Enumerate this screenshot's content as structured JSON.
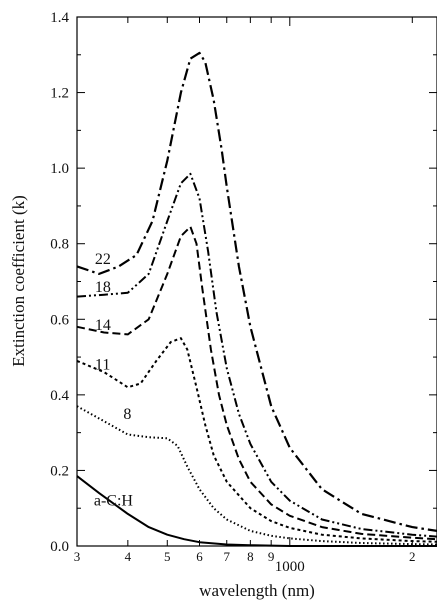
{
  "chart_data": {
    "type": "line",
    "xlabel": "wavelength (nm)",
    "ylabel": "Extinction coefficient (k)",
    "x_scale": "log",
    "xlim": [
      300,
      2300
    ],
    "ylim": [
      0,
      1.4
    ],
    "grid": false,
    "y_ticks": [
      {
        "value": 0.0,
        "label": "0.0"
      },
      {
        "value": 0.2,
        "label": "0.2"
      },
      {
        "value": 0.4,
        "label": "0.4"
      },
      {
        "value": 0.6,
        "label": "0.6"
      },
      {
        "value": 0.8,
        "label": "0.8"
      },
      {
        "value": 1.0,
        "label": "1.0"
      },
      {
        "value": 1.2,
        "label": "1.2"
      },
      {
        "value": 1.4,
        "label": "1.4"
      }
    ],
    "x_ticks": [
      {
        "value": 300,
        "label": "3"
      },
      {
        "value": 400,
        "label": "4"
      },
      {
        "value": 500,
        "label": "5"
      },
      {
        "value": 600,
        "label": "6"
      },
      {
        "value": 700,
        "label": "7"
      },
      {
        "value": 800,
        "label": "8"
      },
      {
        "value": 900,
        "label": "9"
      },
      {
        "value": 1000,
        "label": "1000"
      },
      {
        "value": 2000,
        "label": "2"
      }
    ],
    "series": [
      {
        "name": "a-C:H",
        "dash": "solid",
        "label_x": 330,
        "label_y": 0.12,
        "x": [
          300,
          340,
          400,
          450,
          500,
          550,
          600,
          700,
          800,
          1000,
          1500,
          2300
        ],
        "y": [
          0.185,
          0.14,
          0.085,
          0.05,
          0.03,
          0.018,
          0.01,
          0.004,
          0.002,
          0.0,
          0.0,
          0.0
        ]
      },
      {
        "name": "8",
        "dash": "dot",
        "label_x": 390,
        "label_y": 0.35,
        "x": [
          300,
          350,
          400,
          450,
          500,
          530,
          560,
          600,
          650,
          700,
          800,
          900,
          1000,
          1200,
          1500,
          2000,
          2300
        ],
        "y": [
          0.37,
          0.33,
          0.295,
          0.288,
          0.285,
          0.265,
          0.21,
          0.15,
          0.1,
          0.07,
          0.04,
          0.027,
          0.02,
          0.013,
          0.008,
          0.005,
          0.004
        ]
      },
      {
        "name": "11",
        "dash": "short-dash",
        "label_x": 332,
        "label_y": 0.48,
        "x": [
          300,
          350,
          400,
          430,
          470,
          510,
          540,
          560,
          590,
          620,
          650,
          700,
          800,
          900,
          1000,
          1200,
          1500,
          2000,
          2300
        ],
        "y": [
          0.49,
          0.46,
          0.42,
          0.43,
          0.49,
          0.54,
          0.55,
          0.52,
          0.42,
          0.32,
          0.24,
          0.17,
          0.1,
          0.066,
          0.048,
          0.03,
          0.02,
          0.013,
          0.011
        ]
      },
      {
        "name": "14",
        "dash": "dash",
        "label_x": 332,
        "label_y": 0.585,
        "x": [
          300,
          350,
          400,
          450,
          500,
          540,
          570,
          590,
          610,
          640,
          670,
          700,
          750,
          800,
          900,
          1000,
          1200,
          1500,
          2000,
          2300
        ],
        "y": [
          0.58,
          0.565,
          0.56,
          0.6,
          0.72,
          0.82,
          0.845,
          0.8,
          0.68,
          0.52,
          0.4,
          0.32,
          0.23,
          0.17,
          0.11,
          0.08,
          0.05,
          0.032,
          0.022,
          0.018
        ]
      },
      {
        "name": "18",
        "dash": "dash-dot-dot",
        "label_x": 332,
        "label_y": 0.685,
        "x": [
          300,
          350,
          400,
          450,
          500,
          540,
          570,
          600,
          630,
          660,
          700,
          750,
          800,
          900,
          1000,
          1200,
          1500,
          2000,
          2300
        ],
        "y": [
          0.66,
          0.665,
          0.67,
          0.72,
          0.86,
          0.96,
          0.985,
          0.92,
          0.78,
          0.62,
          0.47,
          0.35,
          0.27,
          0.17,
          0.12,
          0.07,
          0.045,
          0.03,
          0.025
        ]
      },
      {
        "name": "22",
        "dash": "dash-dot",
        "label_x": 332,
        "label_y": 0.76,
        "x": [
          300,
          340,
          380,
          420,
          460,
          500,
          540,
          570,
          600,
          620,
          650,
          680,
          700,
          750,
          800,
          900,
          1000,
          1200,
          1500,
          2000,
          2300
        ],
        "y": [
          0.74,
          0.72,
          0.74,
          0.77,
          0.86,
          1.02,
          1.2,
          1.29,
          1.305,
          1.28,
          1.18,
          1.05,
          0.95,
          0.74,
          0.58,
          0.37,
          0.26,
          0.15,
          0.085,
          0.05,
          0.04
        ]
      }
    ]
  }
}
